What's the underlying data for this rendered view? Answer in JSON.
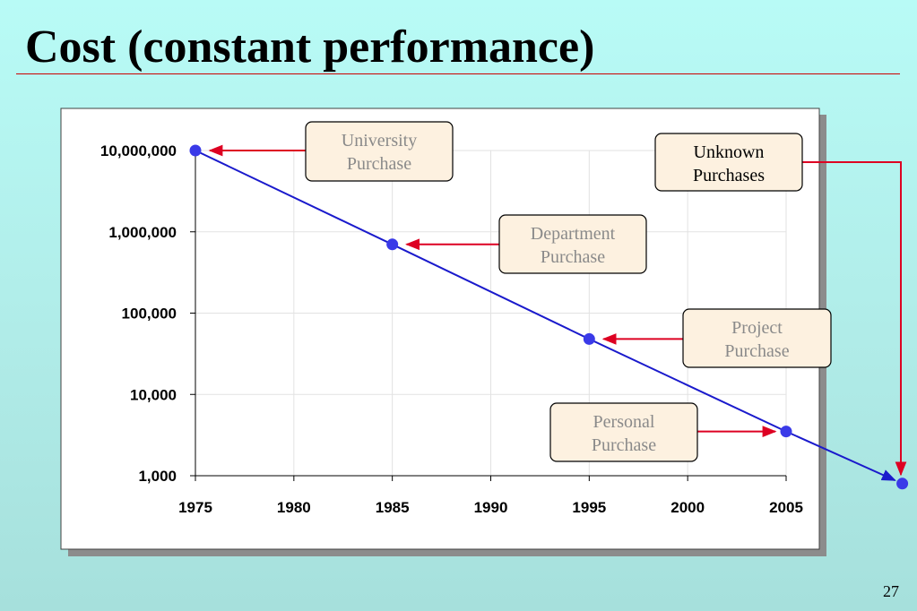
{
  "slide": {
    "title": "Cost (constant performance)",
    "page_number": "27"
  },
  "colors": {
    "line": "#1a1acc",
    "points": "#3a3ae8",
    "arrows": "#dd0022",
    "callout_fill": "#fdf1e0",
    "callout_text_muted": "#8a8a8a",
    "callout_text_dark": "#000000"
  },
  "chart_data": {
    "type": "line",
    "scale_y": "log",
    "grid": true,
    "xlim": [
      1975,
      2005
    ],
    "ylim": [
      1000,
      10000000
    ],
    "x_ticks": [
      "1975",
      "1980",
      "1985",
      "1990",
      "1995",
      "2000",
      "2005"
    ],
    "y_ticks": [
      "1,000",
      "10,000",
      "100,000",
      "1,000,000",
      "10,000,000"
    ],
    "series": [
      {
        "points": [
          {
            "x": 1975,
            "y": 10000000
          },
          {
            "x": 1985,
            "y": 700000
          },
          {
            "x": 1995,
            "y": 48000
          },
          {
            "x": 2005,
            "y": 3500
          },
          {
            "x": 2010.9,
            "y": 800
          }
        ]
      }
    ],
    "annotations": [
      {
        "text_lines": [
          "University",
          "Purchase"
        ],
        "target_index": 0,
        "style": "muted"
      },
      {
        "text_lines": [
          "Department",
          "Purchase"
        ],
        "target_index": 1,
        "style": "muted"
      },
      {
        "text_lines": [
          "Project",
          "Purchase"
        ],
        "target_index": 2,
        "style": "muted"
      },
      {
        "text_lines": [
          "Personal",
          "Purchase"
        ],
        "target_index": 3,
        "style": "muted"
      },
      {
        "text_lines": [
          "Unknown",
          "Purchases"
        ],
        "target_index": 4,
        "style": "dark"
      }
    ]
  }
}
